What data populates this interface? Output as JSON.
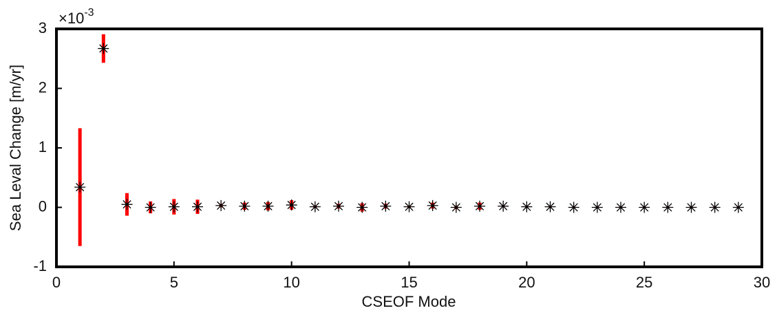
{
  "chart_data": {
    "type": "scatter",
    "x_label": "CSEOF Mode",
    "y_label": "Sea Leval Change [m/yr]",
    "y_scale_label": "×10",
    "y_scale_exponent": "-3",
    "x": [
      1,
      2,
      3,
      4,
      5,
      6,
      7,
      8,
      9,
      10,
      11,
      12,
      13,
      14,
      15,
      16,
      17,
      18,
      19,
      20,
      21,
      22,
      23,
      24,
      25,
      26,
      27,
      28,
      29
    ],
    "values": [
      0.34,
      2.67,
      0.05,
      0.0,
      0.01,
      0.01,
      0.03,
      0.02,
      0.02,
      0.04,
      0.01,
      0.02,
      0.0,
      0.02,
      0.01,
      0.03,
      0.0,
      0.02,
      0.02,
      0.01,
      0.01,
      0.0,
      0.0,
      0.0,
      0.0,
      0.0,
      0.0,
      0.0,
      0.0
    ],
    "errors": [
      0.99,
      0.24,
      0.19,
      0.1,
      0.13,
      0.12,
      0.03,
      0.06,
      0.07,
      0.08,
      0.02,
      0.04,
      0.07,
      0.04,
      0.02,
      0.05,
      0.03,
      0.06,
      0.01,
      0.01,
      0.01,
      0.01,
      0.01,
      0.01,
      0.01,
      0.01,
      0.01,
      0.01,
      0.01
    ],
    "marker_color": "#000000",
    "error_color": "#ff0000",
    "xlim": [
      0,
      30
    ],
    "xticks": [
      0,
      5,
      10,
      15,
      20,
      25,
      30
    ],
    "ylim": [
      -1,
      3
    ],
    "yticks": [
      -1,
      0,
      1,
      2,
      3
    ]
  }
}
